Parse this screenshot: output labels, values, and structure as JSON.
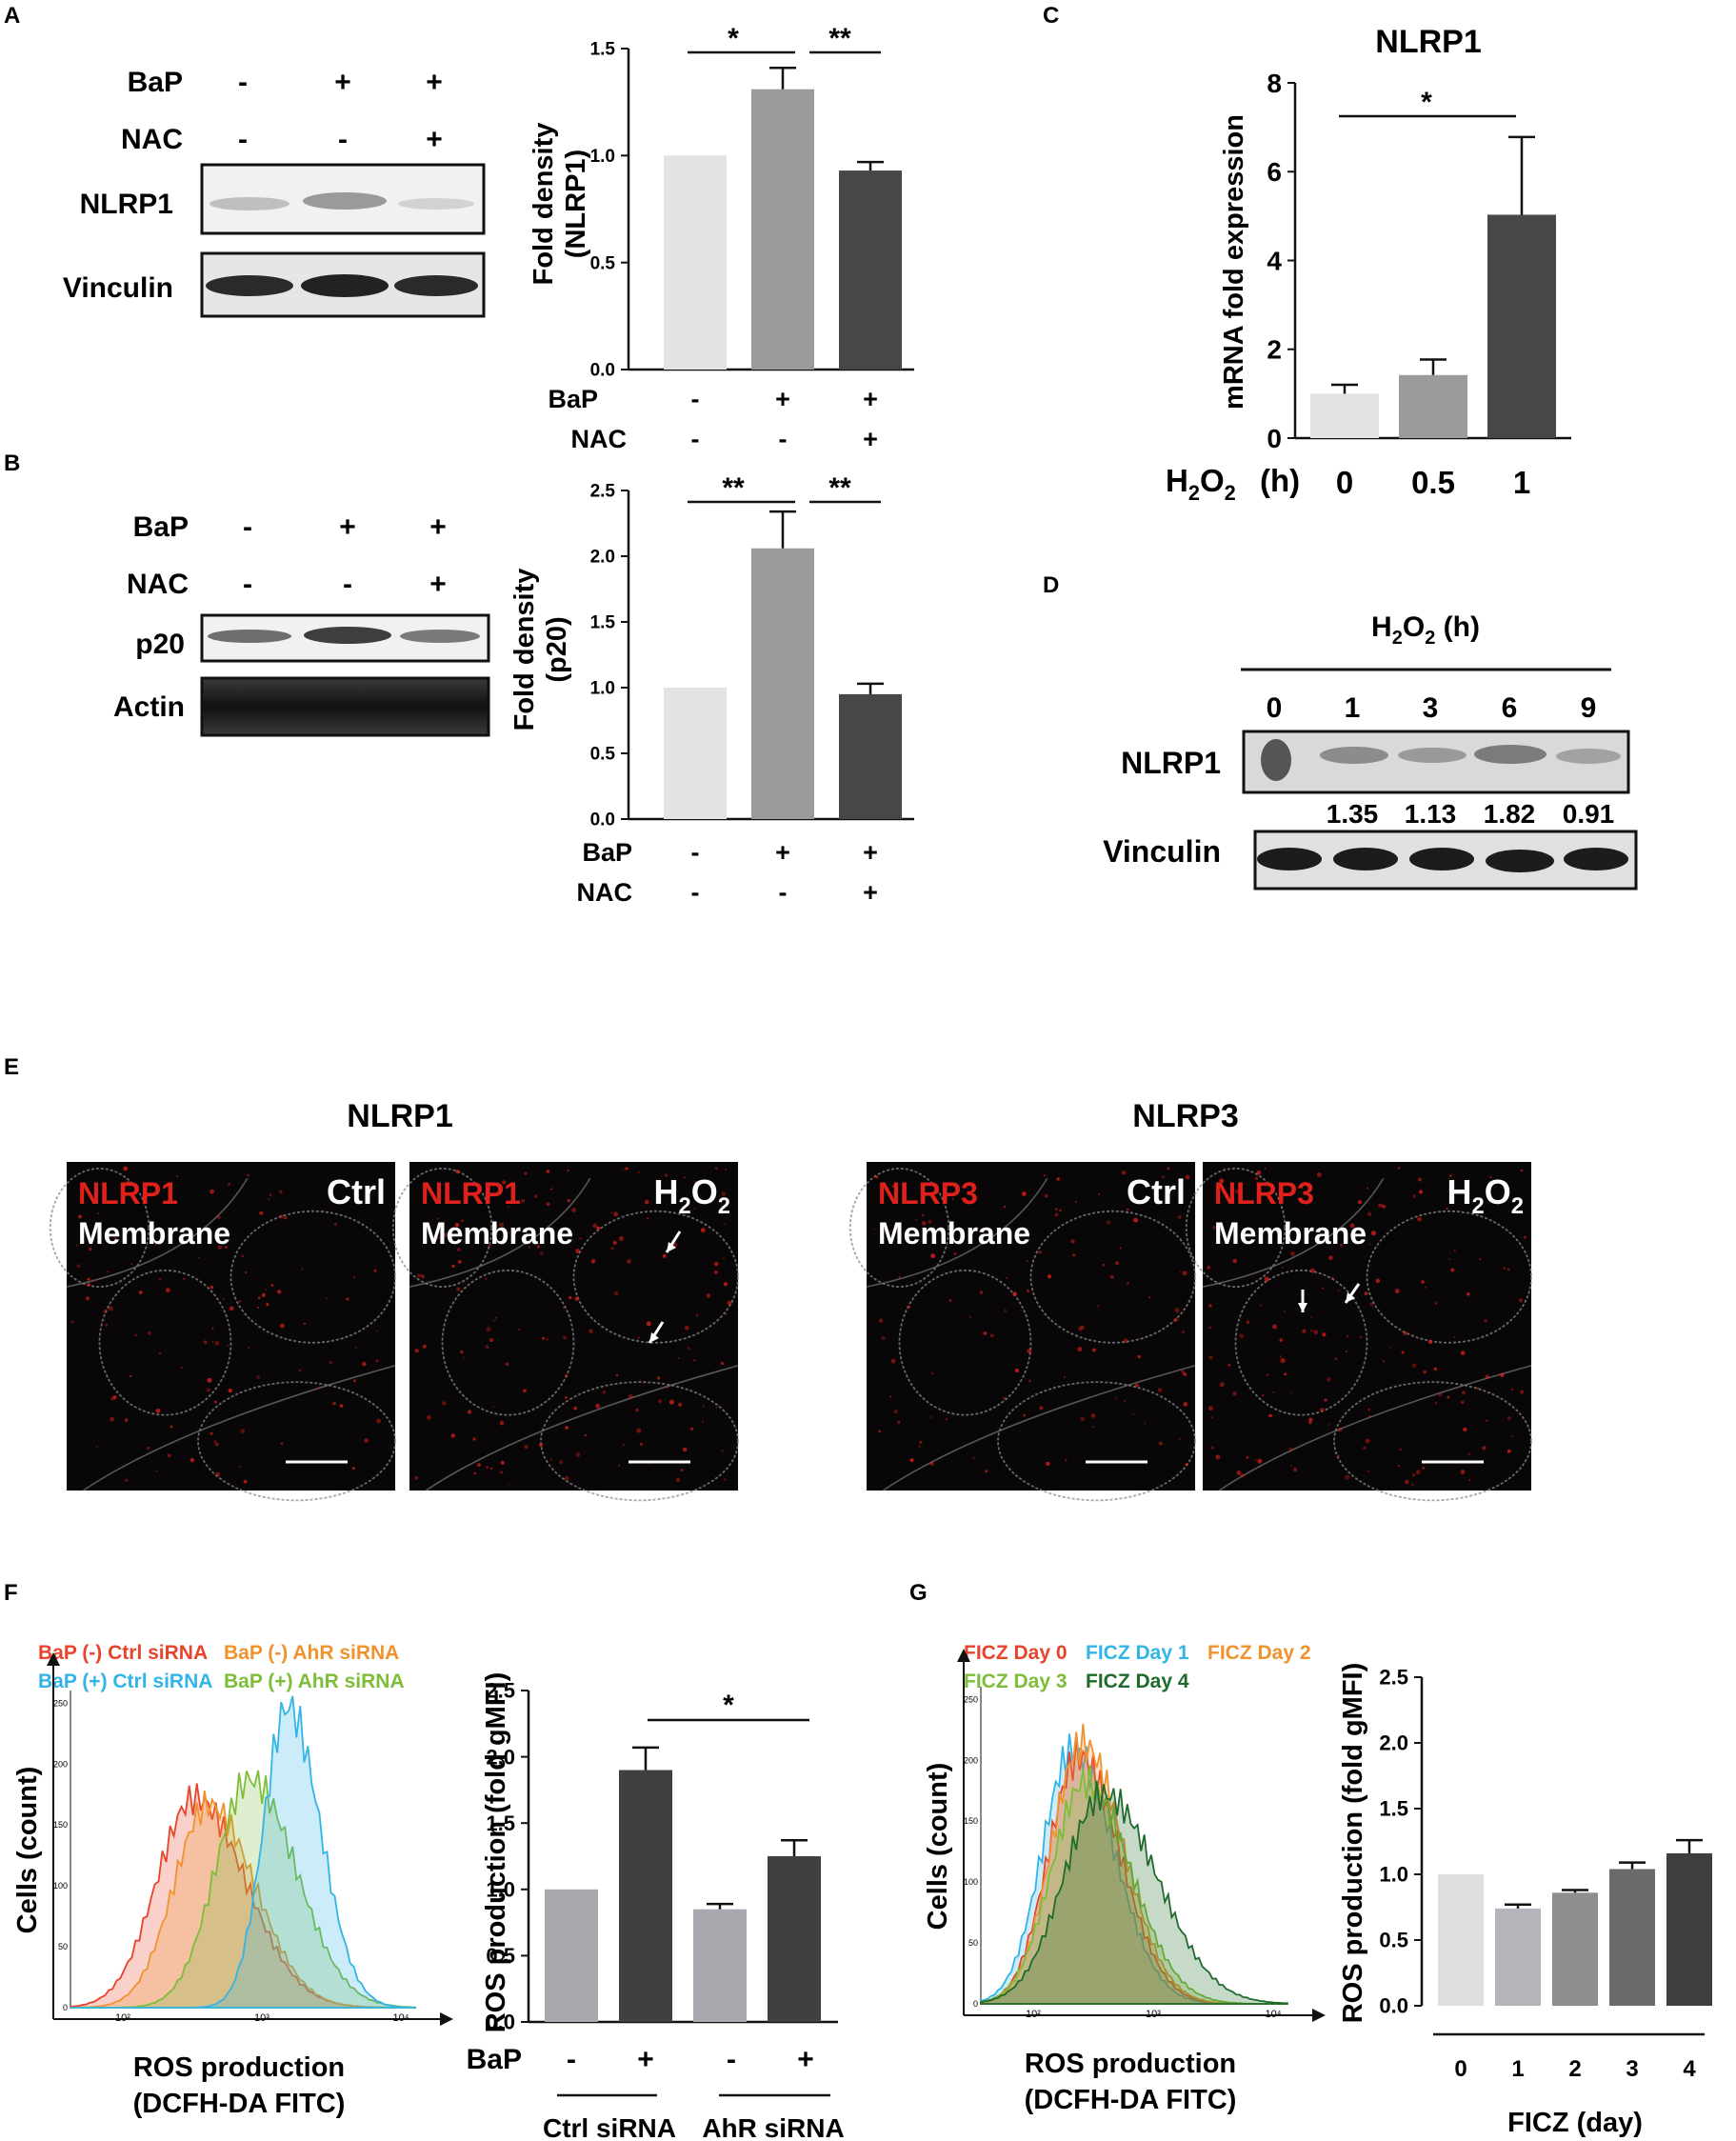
{
  "panel_labels": {
    "A": "A",
    "B": "B",
    "C": "C",
    "D": "D",
    "E": "E",
    "F": "F",
    "G": "G"
  },
  "panelA": {
    "blot": {
      "row_labels": [
        "BaP",
        "NAC"
      ],
      "bap": [
        "-",
        "+",
        "+"
      ],
      "nac": [
        "-",
        "-",
        "+"
      ],
      "bands": [
        "NLRP1",
        "Vinculin"
      ]
    },
    "chart": {
      "type": "bar",
      "ylabel": "Fold density (NLRP1)",
      "ylabel_lines": [
        "Fold density",
        "(NLRP1)"
      ],
      "yticks": [
        "0.0",
        "0.5",
        "1.0",
        "1.5"
      ],
      "ylim": [
        0,
        1.5
      ],
      "values": [
        1.0,
        1.31,
        0.93
      ],
      "errors": [
        0,
        0.1,
        0.04
      ],
      "colors": [
        "#e3e3e3",
        "#9b9b9b",
        "#474747"
      ],
      "row_labels": [
        "BaP",
        "NAC"
      ],
      "bap": [
        "-",
        "+",
        "+"
      ],
      "nac": [
        "-",
        "-",
        "+"
      ],
      "sig": [
        "*",
        "**"
      ]
    }
  },
  "panelB": {
    "blot": {
      "row_labels": [
        "BaP",
        "NAC"
      ],
      "bap": [
        "-",
        "+",
        "+"
      ],
      "nac": [
        "-",
        "-",
        "+"
      ],
      "bands": [
        "p20",
        "Actin"
      ]
    },
    "chart": {
      "type": "bar",
      "ylabel": "Fold density (p20)",
      "ylabel_lines": [
        "Fold density",
        "(p20)"
      ],
      "yticks": [
        "0.0",
        "0.5",
        "1.0",
        "1.5",
        "2.0",
        "2.5"
      ],
      "ylim": [
        0,
        2.5
      ],
      "values": [
        1.0,
        2.06,
        0.95
      ],
      "errors": [
        0,
        0.28,
        0.08
      ],
      "colors": [
        "#e3e3e3",
        "#9b9b9b",
        "#474747"
      ],
      "row_labels": [
        "BaP",
        "NAC"
      ],
      "bap": [
        "-",
        "+",
        "+"
      ],
      "nac": [
        "-",
        "-",
        "+"
      ],
      "sig": [
        "**",
        "**"
      ]
    }
  },
  "panelC": {
    "type": "bar",
    "title": "NLRP1",
    "ylabel": "mRNA  fold expression",
    "yticks": [
      "0",
      "2",
      "4",
      "6",
      "8"
    ],
    "ylim": [
      0,
      8
    ],
    "categories": [
      "0",
      "0.5",
      "1"
    ],
    "values": [
      1.0,
      1.42,
      5.03
    ],
    "errors": [
      0.2,
      0.35,
      1.75
    ],
    "colors": [
      "#e3e3e3",
      "#9b9b9b",
      "#474747"
    ],
    "xlabel": "H2O2 (h)",
    "sig": "*"
  },
  "panelD": {
    "header": "H2O2  (h)",
    "times": [
      "0",
      "1",
      "3",
      "6",
      "9"
    ],
    "bands": [
      "NLRP1",
      "Vinculin"
    ],
    "densities": [
      "1.35",
      "1.13",
      "1.82",
      "0.91"
    ]
  },
  "panelE": {
    "group_titles": [
      "NLRP1",
      "NLRP3"
    ],
    "images": [
      {
        "marker": "NLRP1",
        "stain": "Membrane",
        "condition": "Ctrl"
      },
      {
        "marker": "NLRP1",
        "stain": "Membrane",
        "condition": "H2O2"
      },
      {
        "marker": "NLRP3",
        "stain": "Membrane",
        "condition": "Ctrl"
      },
      {
        "marker": "NLRP3",
        "stain": "Membrane",
        "condition": "H2O2"
      }
    ],
    "marker_color": "#e0201b"
  },
  "panelF": {
    "legend": [
      {
        "label": "BaP (-) Ctrl siRNA",
        "color": "#e8432b"
      },
      {
        "label": "BaP (-) AhR siRNA",
        "color": "#f0922e"
      },
      {
        "label": "BaP (+) Ctrl siRNA",
        "color": "#33b4e6"
      },
      {
        "label": "BaP (+) AhR siRNA",
        "color": "#7dbd3a"
      }
    ],
    "hist_ylabel": "Cells (count)",
    "hist_xlabel": [
      "ROS production",
      "(DCFH-DA FITC)"
    ],
    "hist_yticks": [
      "0",
      "50",
      "100",
      "150",
      "200",
      "250"
    ],
    "hist_xticks": [
      "10²",
      "10³",
      "10⁴"
    ],
    "chart": {
      "type": "bar",
      "ylabel": "ROS production (fold gMFI)",
      "yticks": [
        "0.0",
        "0.5",
        "1.0",
        "1.5",
        "2.0",
        "2.5"
      ],
      "ylim": [
        0,
        2.5
      ],
      "values": [
        1.0,
        1.9,
        0.85,
        1.25
      ],
      "errors": [
        0,
        0.17,
        0.04,
        0.12
      ],
      "colors": [
        "#a8a8ae",
        "#404040",
        "#a8a8ae",
        "#404040"
      ],
      "bap_label": "BaP",
      "bap": [
        "-",
        "+",
        "-",
        "+"
      ],
      "groups": [
        "Ctrl siRNA",
        "AhR siRNA"
      ],
      "sig": "*"
    }
  },
  "panelG": {
    "legend": [
      {
        "label": "FICZ Day 0",
        "color": "#e8432b"
      },
      {
        "label": "FICZ Day 1",
        "color": "#33b4e6"
      },
      {
        "label": "FICZ Day 2",
        "color": "#f0922e"
      },
      {
        "label": "FICZ Day 3",
        "color": "#7dbd3a"
      },
      {
        "label": "FICZ Day 4",
        "color": "#1f6b2c"
      }
    ],
    "hist_ylabel": "Cells (count)",
    "hist_xlabel": [
      "ROS production",
      "(DCFH-DA FITC)"
    ],
    "hist_yticks": [
      "0",
      "50",
      "100",
      "150",
      "200",
      "250"
    ],
    "hist_xticks": [
      "10²",
      "10³",
      "10⁴"
    ],
    "chart": {
      "type": "bar",
      "ylabel": "ROS production (fold gMFI)",
      "yticks": [
        "0.0",
        "0.5",
        "1.0",
        "1.5",
        "2.0",
        "2.5"
      ],
      "ylim": [
        0,
        2.5
      ],
      "categories": [
        "0",
        "1",
        "2",
        "3",
        "4"
      ],
      "values": [
        1.0,
        0.74,
        0.86,
        1.04,
        1.16
      ],
      "errors": [
        0,
        0.03,
        0.02,
        0.05,
        0.1
      ],
      "colors": [
        "#dedede",
        "#b4b4ba",
        "#8e8e8e",
        "#6a6a6a",
        "#3e3e3e"
      ],
      "xlabel": "FICZ (day)"
    }
  },
  "chart_data": [
    {
      "type": "bar",
      "ylabel": "Fold density (NLRP1)",
      "categories": [
        "BaP- NAC-",
        "BaP+ NAC-",
        "BaP+ NAC+"
      ],
      "values": [
        1.0,
        1.31,
        0.93
      ],
      "ylim": [
        0,
        1.5
      ]
    },
    {
      "type": "bar",
      "ylabel": "Fold density (p20)",
      "categories": [
        "BaP- NAC-",
        "BaP+ NAC-",
        "BaP+ NAC+"
      ],
      "values": [
        1.0,
        2.06,
        0.95
      ],
      "ylim": [
        0,
        2.5
      ]
    },
    {
      "type": "bar",
      "title": "NLRP1",
      "xlabel": "H2O2 (h)",
      "ylabel": "mRNA  fold expression",
      "categories": [
        "0",
        "0.5",
        "1"
      ],
      "values": [
        1.0,
        1.42,
        5.03
      ],
      "ylim": [
        0,
        8
      ]
    },
    {
      "type": "bar",
      "ylabel": "ROS production (fold gMFI)",
      "categories": [
        "Ctrl siRNA BaP-",
        "Ctrl siRNA BaP+",
        "AhR siRNA BaP-",
        "AhR siRNA BaP+"
      ],
      "values": [
        1.0,
        1.9,
        0.85,
        1.25
      ],
      "ylim": [
        0,
        2.5
      ]
    },
    {
      "type": "bar",
      "xlabel": "FICZ (day)",
      "ylabel": "ROS production (fold gMFI)",
      "categories": [
        "0",
        "1",
        "2",
        "3",
        "4"
      ],
      "values": [
        1.0,
        0.74,
        0.86,
        1.04,
        1.16
      ],
      "ylim": [
        0,
        2.5
      ]
    }
  ]
}
